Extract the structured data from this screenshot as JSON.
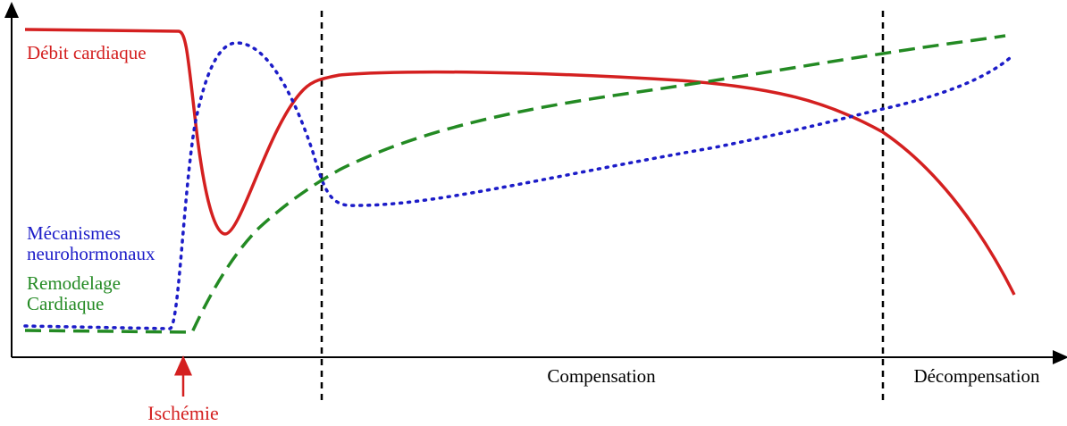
{
  "curves": [
    {
      "label_lines": [
        "Débit cardiaque"
      ]
    },
    {
      "label_lines": [
        "Mécanismes",
        "neurohormonaux"
      ]
    },
    {
      "label_lines": [
        "Remodelage",
        "Cardiaque"
      ]
    }
  ],
  "phases": [
    "Compensation",
    "Décompensation"
  ],
  "event": "Ischémie"
}
